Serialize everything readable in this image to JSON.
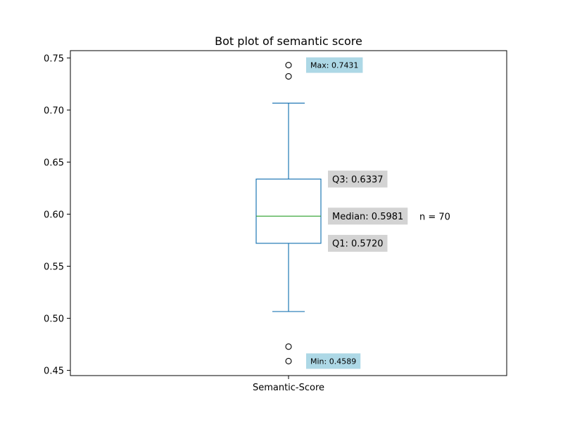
{
  "chart_data": {
    "type": "box",
    "title": "Bot plot of semantic score",
    "categories": [
      "Semantic-Score"
    ],
    "ylim": [
      0.445,
      0.757
    ],
    "yticks": [
      0.45,
      0.5,
      0.55,
      0.6,
      0.65,
      0.7,
      0.75
    ],
    "ytick_labels": [
      "0.45",
      "0.50",
      "0.55",
      "0.60",
      "0.65",
      "0.70",
      "0.75"
    ],
    "box": {
      "q1": 0.572,
      "median": 0.5981,
      "q3": 0.6337,
      "whisker_low": 0.5065,
      "whisker_high": 0.7066
    },
    "outliers": [
      0.4589,
      0.4728,
      0.7323,
      0.7431
    ],
    "annotations": {
      "max": "Max: 0.7431",
      "min": "Min: 0.4589",
      "q3": "Q3: 0.6337",
      "median": "Median: 0.5981",
      "q1": "Q1: 0.5720",
      "n": "n = 70"
    },
    "colors": {
      "box": "#1f77b4",
      "median": "#2ca02c",
      "stat_label_bg": "#d3d3d3",
      "extreme_label_bg": "#add8e6"
    },
    "grid": false
  }
}
